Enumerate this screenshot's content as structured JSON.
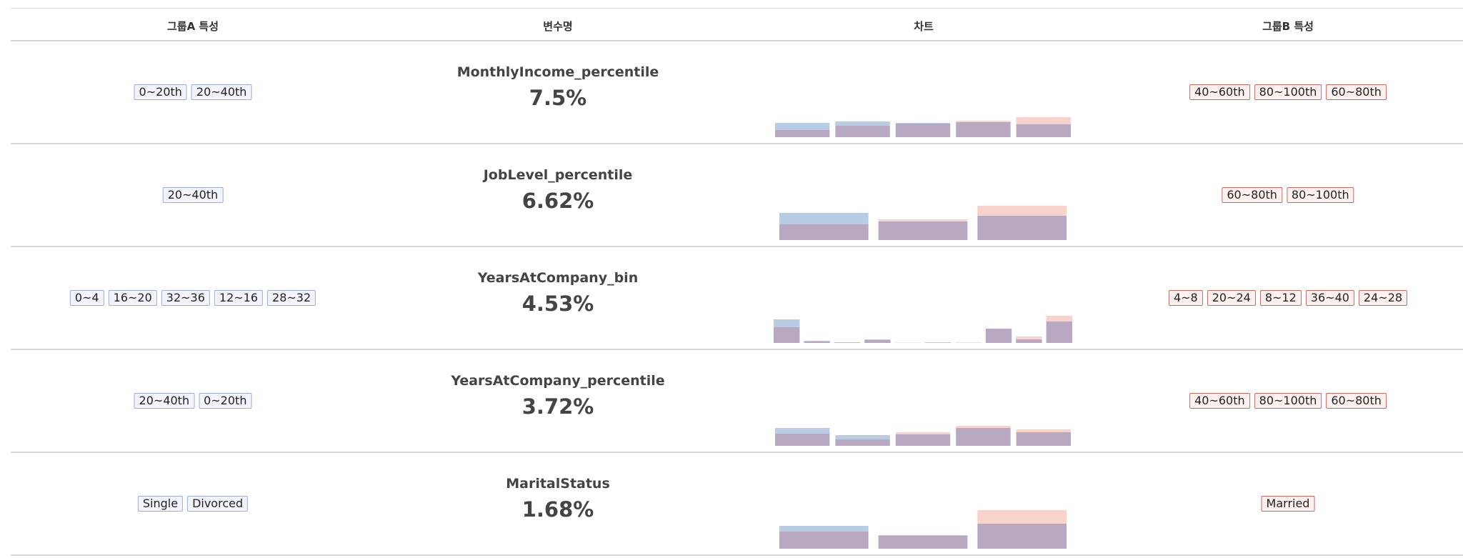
{
  "header": {
    "col_group_a": "그룹A 특성",
    "col_variable": "변수명",
    "col_chart": "차트",
    "col_group_b": "그룹B 특성"
  },
  "colors": {
    "group_a": "#b8cce4",
    "group_b": "#f8d3cb",
    "overlap": "#b8a8c2"
  },
  "rows": [
    {
      "variable": "MonthlyIncome_percentile",
      "percent": "7.5%",
      "group_a_tags": [
        "0~20th",
        "20~40th"
      ],
      "group_b_tags": [
        "40~60th",
        "80~100th",
        "60~80th"
      ],
      "chart_data": {
        "type": "bar",
        "categories": [
          "0~20th",
          "20~40th",
          "40~60th",
          "60~80th",
          "80~100th"
        ],
        "series": [
          {
            "values": [
              20,
              22,
              20,
              21,
              18
            ]
          },
          {
            "values": [
              10,
              16,
              19,
              23,
              28
            ]
          }
        ]
      }
    },
    {
      "variable": "JobLevel_percentile",
      "percent": "6.62%",
      "group_a_tags": [
        "20~40th"
      ],
      "group_b_tags": [
        "60~80th",
        "80~100th"
      ],
      "chart_data": {
        "type": "bar",
        "categories": [
          "20~40th",
          "60~80th",
          "80~100th"
        ],
        "series": [
          {
            "values": [
              38,
              26,
              34
            ]
          },
          {
            "values": [
              22,
              29,
              48
            ]
          }
        ]
      }
    },
    {
      "variable": "YearsAtCompany_bin",
      "percent": "4.53%",
      "group_a_tags": [
        "0~4",
        "16~20",
        "32~36",
        "12~16",
        "28~32"
      ],
      "group_b_tags": [
        "4~8",
        "20~24",
        "8~12",
        "36~40",
        "24~28"
      ],
      "chart_data": {
        "type": "bar",
        "categories": [
          "0~4",
          "4~8",
          "8~12",
          "12~16",
          "16~20",
          "20~24",
          "24~28",
          "28~32",
          "32~36",
          "36~40"
        ],
        "series": [
          {
            "values": [
              33,
              3,
              1,
              5,
              0.3,
              0.5,
              0.3,
              20,
              5,
              30
            ]
          },
          {
            "values": [
              22,
              2,
              0.5,
              4,
              0.2,
              1,
              0.5,
              20,
              9,
              38
            ]
          }
        ]
      }
    },
    {
      "variable": "YearsAtCompany_percentile",
      "percent": "3.72%",
      "group_a_tags": [
        "20~40th",
        "0~20th"
      ],
      "group_b_tags": [
        "40~60th",
        "80~100th",
        "60~80th"
      ],
      "chart_data": {
        "type": "bar",
        "categories": [
          "0~20th",
          "20~40th",
          "40~60th",
          "60~80th",
          "80~100th"
        ],
        "series": [
          {
            "values": [
              25,
              15,
              16,
              25,
              19
            ]
          },
          {
            "values": [
              17,
              9,
              19,
              28,
              23
            ]
          }
        ]
      }
    },
    {
      "variable": "MaritalStatus",
      "percent": "1.68%",
      "group_a_tags": [
        "Single",
        "Divorced"
      ],
      "group_b_tags": [
        "Married"
      ],
      "chart_data": {
        "type": "bar",
        "categories": [
          "Single",
          "Divorced",
          "Married"
        ],
        "series": [
          {
            "values": [
              32,
              19,
              35
            ]
          },
          {
            "values": [
              24,
              18,
              54
            ]
          }
        ]
      }
    }
  ]
}
